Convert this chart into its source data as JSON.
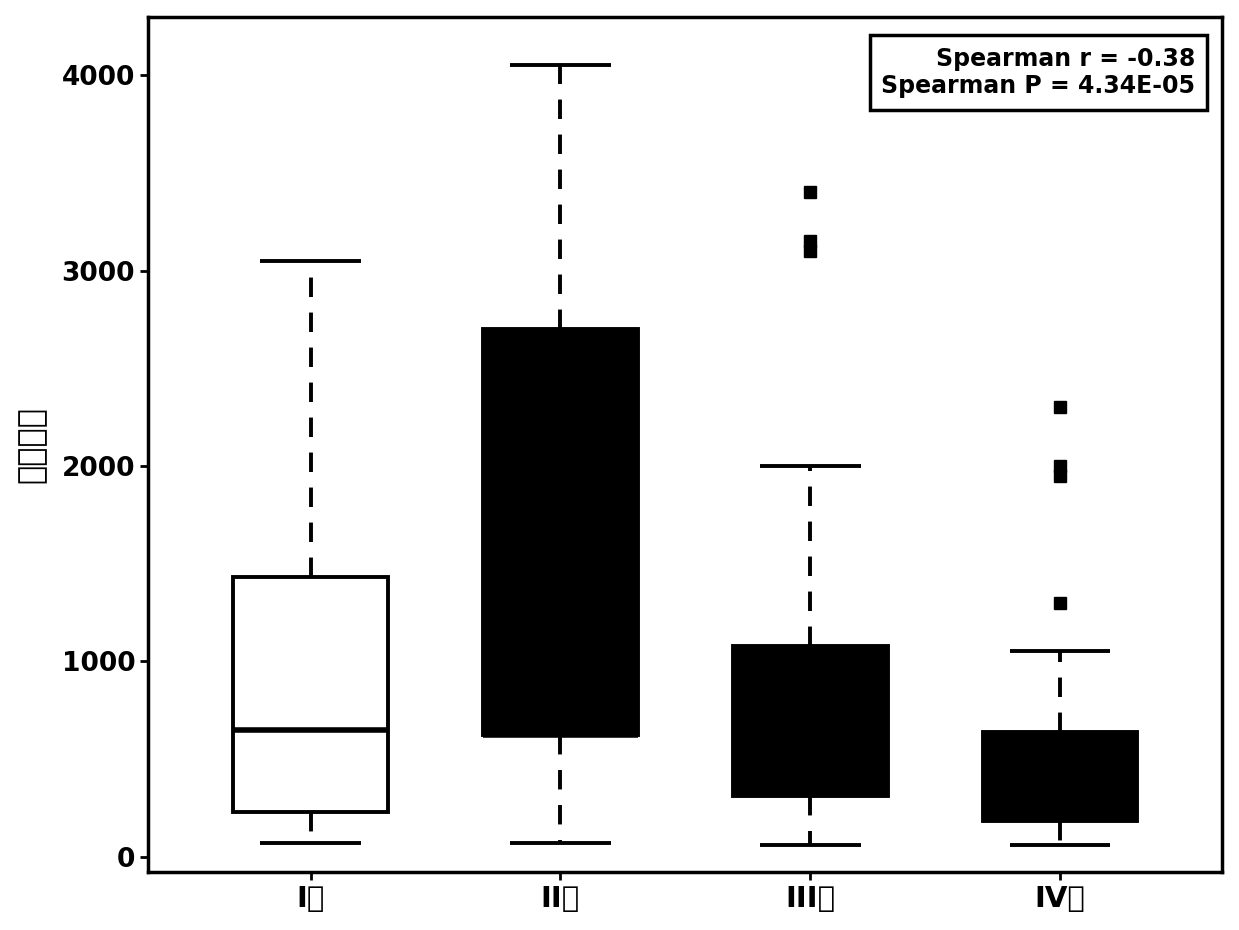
{
  "boxes": [
    {
      "label": "I期",
      "q1": 230,
      "median": 650,
      "q3": 1430,
      "whisker_low": 70,
      "whisker_high": 3050,
      "outliers": [],
      "facecolor": "white",
      "edgecolor": "black"
    },
    {
      "label": "II期",
      "q1": 620,
      "median": 620,
      "q3": 2700,
      "whisker_low": 70,
      "whisker_high": 4050,
      "outliers": [],
      "facecolor": "black",
      "edgecolor": "black"
    },
    {
      "label": "III期",
      "q1": 310,
      "median": 520,
      "q3": 1080,
      "whisker_low": 60,
      "whisker_high": 2000,
      "outliers": [
        3100,
        3150,
        3400
      ],
      "facecolor": "black",
      "edgecolor": "black"
    },
    {
      "label": "IV期",
      "q1": 180,
      "median": 580,
      "q3": 640,
      "whisker_low": 60,
      "whisker_high": 1050,
      "outliers": [
        1300,
        1950,
        2000,
        2300
      ],
      "facecolor": "black",
      "edgecolor": "black"
    }
  ],
  "ylabel": "生存天数",
  "ylim": [
    -80,
    4300
  ],
  "yticks": [
    0,
    1000,
    2000,
    3000,
    4000
  ],
  "annotation_text": "Spearman r = -0.38\nSpearman P = 4.34E-05",
  "annotation_fontsize": 17,
  "background_color": "white",
  "box_width": 0.62,
  "linewidth": 2.8,
  "median_linewidth": 4.0,
  "cap_ratio": 0.65
}
